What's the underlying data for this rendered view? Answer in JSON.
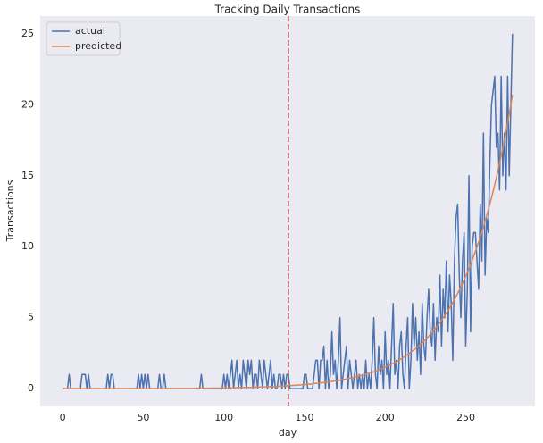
{
  "chart_data": {
    "type": "line",
    "title": "Tracking Daily Transactions",
    "xlabel": "day",
    "ylabel": "Transactions",
    "x": [
      0,
      1,
      2,
      3,
      4,
      5,
      6,
      7,
      8,
      9,
      10,
      11,
      12,
      13,
      14,
      15,
      16,
      17,
      18,
      19,
      20,
      21,
      22,
      23,
      24,
      25,
      26,
      27,
      28,
      29,
      30,
      31,
      32,
      33,
      34,
      35,
      36,
      37,
      38,
      39,
      40,
      41,
      42,
      43,
      44,
      45,
      46,
      47,
      48,
      49,
      50,
      51,
      52,
      53,
      54,
      55,
      56,
      57,
      58,
      59,
      60,
      61,
      62,
      63,
      64,
      65,
      66,
      67,
      68,
      69,
      70,
      71,
      72,
      73,
      74,
      75,
      76,
      77,
      78,
      79,
      80,
      81,
      82,
      83,
      84,
      85,
      86,
      87,
      88,
      89,
      90,
      91,
      92,
      93,
      94,
      95,
      96,
      97,
      98,
      99,
      100,
      101,
      102,
      103,
      104,
      105,
      106,
      107,
      108,
      109,
      110,
      111,
      112,
      113,
      114,
      115,
      116,
      117,
      118,
      119,
      120,
      121,
      122,
      123,
      124,
      125,
      126,
      127,
      128,
      129,
      130,
      131,
      132,
      133,
      134,
      135,
      136,
      137,
      138,
      139,
      140,
      141,
      142,
      143,
      144,
      145,
      146,
      147,
      148,
      149,
      150,
      151,
      152,
      153,
      154,
      155,
      156,
      157,
      158,
      159,
      160,
      161,
      162,
      163,
      164,
      165,
      166,
      167,
      168,
      169,
      170,
      171,
      172,
      173,
      174,
      175,
      176,
      177,
      178,
      179,
      180,
      181,
      182,
      183,
      184,
      185,
      186,
      187,
      188,
      189,
      190,
      191,
      192,
      193,
      194,
      195,
      196,
      197,
      198,
      199,
      200,
      201,
      202,
      203,
      204,
      205,
      206,
      207,
      208,
      209,
      210,
      211,
      212,
      213,
      214,
      215,
      216,
      217,
      218,
      219,
      220,
      221,
      222,
      223,
      224,
      225,
      226,
      227,
      228,
      229,
      230,
      231,
      232,
      233,
      234,
      235,
      236,
      237,
      238,
      239,
      240,
      241,
      242,
      243,
      244,
      245,
      246,
      247,
      248,
      249,
      250,
      251,
      252,
      253,
      254,
      255,
      256,
      257,
      258,
      259,
      260,
      261,
      262,
      263,
      264,
      265,
      266,
      267,
      268,
      269,
      270,
      271,
      272,
      273,
      274,
      275,
      276,
      277,
      278,
      279
    ],
    "series": [
      {
        "name": "actual",
        "color": "#4c72b0",
        "values": [
          0,
          0,
          0,
          0,
          1,
          0,
          0,
          0,
          0,
          0,
          0,
          0,
          1,
          1,
          1,
          0,
          1,
          0,
          0,
          0,
          0,
          0,
          0,
          0,
          0,
          0,
          0,
          0,
          1,
          0,
          1,
          1,
          0,
          0,
          0,
          0,
          0,
          0,
          0,
          0,
          0,
          0,
          0,
          0,
          0,
          0,
          0,
          1,
          0,
          1,
          0,
          1,
          0,
          1,
          0,
          0,
          0,
          0,
          0,
          0,
          1,
          0,
          0,
          1,
          0,
          0,
          0,
          0,
          0,
          0,
          0,
          0,
          0,
          0,
          0,
          0,
          0,
          0,
          0,
          0,
          0,
          0,
          0,
          0,
          0,
          0,
          1,
          0,
          0,
          0,
          0,
          0,
          0,
          0,
          0,
          0,
          0,
          0,
          0,
          0,
          1,
          0,
          1,
          0,
          1,
          2,
          0,
          1,
          2,
          0,
          1,
          0,
          2,
          1,
          0,
          2,
          1,
          2,
          0,
          1,
          1,
          0,
          2,
          1,
          0,
          2,
          1,
          0,
          1,
          2,
          0,
          1,
          0,
          0,
          1,
          1,
          0,
          1,
          0,
          1,
          1,
          0,
          0,
          0,
          0,
          0,
          0,
          0,
          0,
          0,
          1,
          1,
          0,
          0,
          0,
          0,
          1,
          2,
          2,
          0,
          2,
          2,
          3,
          0,
          2,
          0,
          1,
          4,
          1,
          2,
          0,
          2,
          5,
          0,
          1,
          2,
          3,
          0,
          2,
          1,
          0,
          1,
          2,
          0,
          1,
          0,
          1,
          0,
          2,
          0,
          1,
          0,
          2,
          5,
          1,
          0,
          3,
          1,
          2,
          0,
          4,
          1,
          2,
          0,
          3,
          6,
          1,
          2,
          0,
          3,
          4,
          1,
          0,
          3,
          5,
          0,
          2,
          6,
          3,
          5,
          2,
          4,
          1,
          6,
          3,
          2,
          5,
          7,
          4,
          3,
          6,
          2,
          5,
          4,
          8,
          3,
          7,
          5,
          9,
          4,
          8,
          6,
          2,
          9,
          12,
          13,
          8,
          5,
          9,
          11,
          3,
          7,
          15,
          4,
          10,
          11,
          11,
          9,
          7,
          13,
          9,
          18,
          8,
          12,
          11,
          16,
          20,
          21,
          22,
          17,
          18,
          14,
          22,
          15,
          18,
          14,
          22,
          15,
          20,
          25
        ]
      },
      {
        "name": "predicted",
        "color": "#dd8452",
        "values": [
          0,
          0,
          0,
          0,
          0,
          0,
          0,
          0,
          0,
          0,
          0,
          0,
          0,
          0,
          0,
          0,
          0,
          0,
          0,
          0,
          0,
          0,
          0,
          0,
          0,
          0,
          0,
          0,
          0,
          0,
          0,
          0,
          0,
          0,
          0,
          0,
          0,
          0,
          0,
          0,
          0.01,
          0.01,
          0.01,
          0.01,
          0.01,
          0.01,
          0.01,
          0.01,
          0.01,
          0.01,
          0.01,
          0.01,
          0.01,
          0.01,
          0.01,
          0.01,
          0.01,
          0.01,
          0.01,
          0.01,
          0.01,
          0.01,
          0.01,
          0.01,
          0.01,
          0.01,
          0.01,
          0.01,
          0.01,
          0.01,
          0.02,
          0.02,
          0.02,
          0.02,
          0.02,
          0.02,
          0.02,
          0.02,
          0.02,
          0.02,
          0.02,
          0.02,
          0.02,
          0.03,
          0.03,
          0.03,
          0.03,
          0.03,
          0.03,
          0.03,
          0.03,
          0.03,
          0.03,
          0.04,
          0.04,
          0.04,
          0.04,
          0.04,
          0.04,
          0.05,
          0.05,
          0.05,
          0.05,
          0.05,
          0.06,
          0.06,
          0.06,
          0.06,
          0.07,
          0.07,
          0.07,
          0.08,
          0.08,
          0.08,
          0.08,
          0.09,
          0.09,
          0.09,
          0.1,
          0.1,
          0.11,
          0.11,
          0.11,
          0.12,
          0.12,
          0.13,
          0.13,
          0.14,
          0.14,
          0.14,
          0.15,
          0.15,
          0.16,
          0.17,
          0.17,
          0.18,
          0.18,
          0.19,
          0.2,
          0.2,
          0.21,
          0.22,
          0.22,
          0.23,
          0.24,
          0.25,
          0.26,
          0.26,
          0.27,
          0.28,
          0.29,
          0.3,
          0.31,
          0.32,
          0.33,
          0.34,
          0.36,
          0.37,
          0.38,
          0.39,
          0.41,
          0.42,
          0.43,
          0.45,
          0.46,
          0.48,
          0.49,
          0.51,
          0.53,
          0.54,
          0.56,
          0.58,
          0.6,
          0.62,
          0.64,
          0.66,
          0.69,
          0.71,
          0.73,
          0.76,
          0.78,
          0.81,
          0.84,
          0.86,
          0.89,
          0.92,
          0.95,
          0.99,
          1.02,
          1.05,
          1.09,
          1.12,
          1.16,
          1.2,
          1.24,
          1.28,
          1.33,
          1.37,
          1.42,
          1.46,
          1.51,
          1.56,
          1.62,
          1.67,
          1.73,
          1.79,
          1.85,
          1.91,
          1.97,
          2.04,
          2.11,
          2.18,
          2.25,
          2.33,
          2.4,
          2.48,
          2.57,
          2.65,
          2.74,
          2.84,
          2.93,
          3.03,
          3.13,
          3.24,
          3.35,
          3.46,
          3.58,
          3.7,
          3.82,
          3.95,
          4.08,
          4.22,
          4.36,
          4.51,
          4.66,
          4.82,
          4.98,
          5.15,
          5.32,
          5.5,
          5.69,
          5.88,
          6.08,
          6.28,
          6.49,
          6.71,
          6.94,
          7.17,
          7.41,
          7.66,
          7.92,
          8.19,
          8.46,
          8.75,
          9.04,
          9.35,
          9.66,
          9.99,
          10.32,
          10.67,
          11.03,
          11.4,
          11.79,
          12.18,
          12.59,
          13.02,
          13.46,
          13.91,
          14.38,
          14.86,
          15.36,
          15.88,
          16.42,
          16.97,
          17.54,
          18.13,
          18.74,
          19.37,
          20.03,
          20.7
        ]
      }
    ],
    "vline": {
      "x": 140,
      "color": "#c44e52",
      "style": "dashed"
    },
    "xlim": [
      -13.95,
      292.95
    ],
    "xticks": [
      0,
      50,
      100,
      150,
      200,
      250
    ],
    "ylim": [
      -1.25,
      26.25
    ],
    "yticks": [
      0,
      5,
      10,
      15,
      20,
      25
    ],
    "grid": false,
    "legend": "upper-left"
  }
}
